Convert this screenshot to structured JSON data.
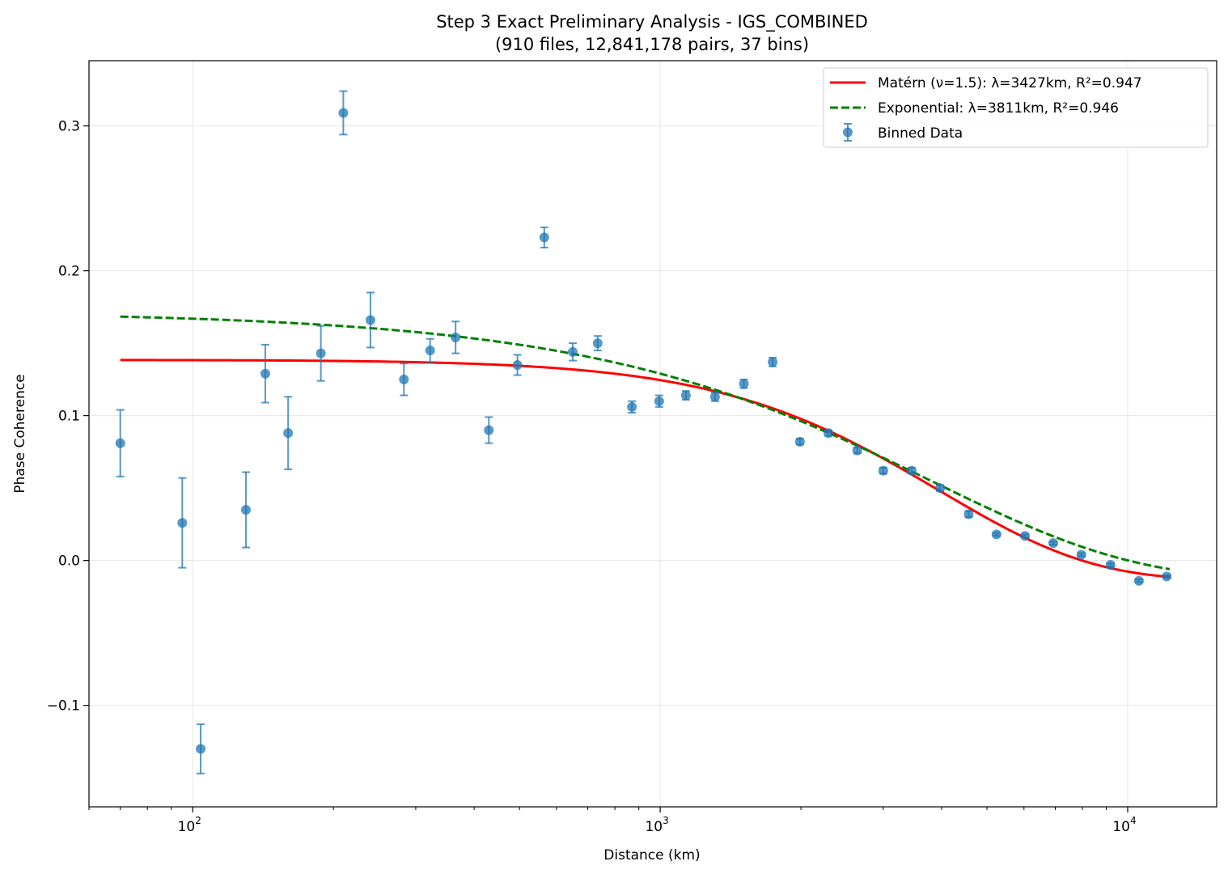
{
  "chart_data": {
    "type": "scatter",
    "title": "Step 3 Exact Preliminary Analysis - IGS_COMBINED",
    "subtitle": "(910 files, 12,841,178 pairs, 37 bins)",
    "xlabel": "Distance (km)",
    "ylabel": "Phase Coherence",
    "xscale": "log",
    "xlim": [
      60,
      15500
    ],
    "ylim": [
      -0.17,
      0.345
    ],
    "x_ticks": [
      {
        "value": 100,
        "base": "10",
        "exp": "2"
      },
      {
        "value": 1000,
        "base": "10",
        "exp": "3"
      },
      {
        "value": 10000,
        "base": "10",
        "exp": "4"
      }
    ],
    "y_ticks": [
      {
        "value": -0.1,
        "label": "−0.1"
      },
      {
        "value": 0.0,
        "label": "0.0"
      },
      {
        "value": 0.1,
        "label": "0.1"
      },
      {
        "value": 0.2,
        "label": "0.2"
      },
      {
        "value": 0.3,
        "label": "0.3"
      }
    ],
    "grid": true,
    "legend_position": "top-right",
    "colors": {
      "data": "#1f77b4",
      "matern": "#ff0000",
      "exponential": "#008000",
      "grid": "#e6e6e6",
      "axes": "#000000"
    },
    "series": [
      {
        "name": "Matérn (ν=1.5): λ=3427km, R²=0.947",
        "kind": "line",
        "style": "solid",
        "model": "matern15",
        "amplitude": 0.152,
        "offset": -0.0135,
        "lambda_km": 3427,
        "x_range": [
          70,
          12300
        ]
      },
      {
        "name": "Exponential: λ=3811km, R²=0.946",
        "kind": "line",
        "style": "dashed",
        "model": "exponential",
        "amplitude": 0.185,
        "offset": -0.0133,
        "lambda_km": 3811,
        "x_range": [
          70,
          12300
        ]
      },
      {
        "name": "Binned Data",
        "kind": "errorbar",
        "points": [
          {
            "x": 70,
            "y": 0.081,
            "err": 0.023
          },
          {
            "x": 95,
            "y": 0.026,
            "err": 0.031
          },
          {
            "x": 104,
            "y": -0.13,
            "err": 0.017
          },
          {
            "x": 130,
            "y": 0.035,
            "err": 0.026
          },
          {
            "x": 143,
            "y": 0.129,
            "err": 0.02
          },
          {
            "x": 160,
            "y": 0.088,
            "err": 0.025
          },
          {
            "x": 188,
            "y": 0.143,
            "err": 0.019
          },
          {
            "x": 210,
            "y": 0.309,
            "err": 0.015
          },
          {
            "x": 240,
            "y": 0.166,
            "err": 0.019
          },
          {
            "x": 283,
            "y": 0.125,
            "err": 0.011
          },
          {
            "x": 322,
            "y": 0.145,
            "err": 0.008
          },
          {
            "x": 365,
            "y": 0.154,
            "err": 0.011
          },
          {
            "x": 430,
            "y": 0.09,
            "err": 0.009
          },
          {
            "x": 495,
            "y": 0.135,
            "err": 0.007
          },
          {
            "x": 565,
            "y": 0.223,
            "err": 0.007
          },
          {
            "x": 650,
            "y": 0.144,
            "err": 0.006
          },
          {
            "x": 735,
            "y": 0.15,
            "err": 0.005
          },
          {
            "x": 870,
            "y": 0.106,
            "err": 0.004
          },
          {
            "x": 995,
            "y": 0.11,
            "err": 0.004
          },
          {
            "x": 1135,
            "y": 0.114,
            "err": 0.003
          },
          {
            "x": 1310,
            "y": 0.113,
            "err": 0.003
          },
          {
            "x": 1510,
            "y": 0.122,
            "err": 0.003
          },
          {
            "x": 1740,
            "y": 0.137,
            "err": 0.003
          },
          {
            "x": 1990,
            "y": 0.082,
            "err": 0.002
          },
          {
            "x": 2290,
            "y": 0.088,
            "err": 0.002
          },
          {
            "x": 2640,
            "y": 0.076,
            "err": 0.002
          },
          {
            "x": 3000,
            "y": 0.062,
            "err": 0.002
          },
          {
            "x": 3450,
            "y": 0.062,
            "err": 0.002
          },
          {
            "x": 3970,
            "y": 0.05,
            "err": 0.002
          },
          {
            "x": 4570,
            "y": 0.032,
            "err": 0.002
          },
          {
            "x": 5240,
            "y": 0.018,
            "err": 0.001
          },
          {
            "x": 6030,
            "y": 0.017,
            "err": 0.001
          },
          {
            "x": 6930,
            "y": 0.012,
            "err": 0.001
          },
          {
            "x": 7960,
            "y": 0.004,
            "err": 0.001
          },
          {
            "x": 9190,
            "y": -0.003,
            "err": 0.001
          },
          {
            "x": 10570,
            "y": -0.014,
            "err": 0.001
          },
          {
            "x": 12120,
            "y": -0.011,
            "err": 0.001
          }
        ]
      }
    ]
  }
}
